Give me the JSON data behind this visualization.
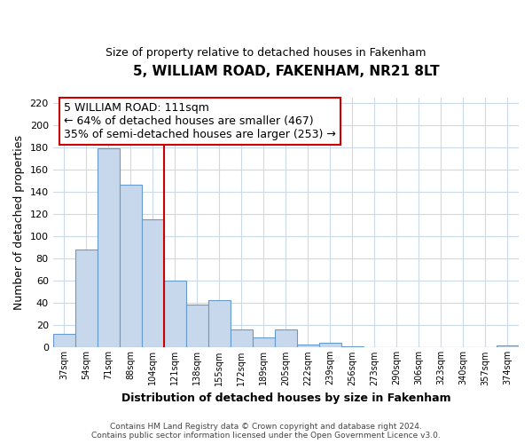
{
  "title": "5, WILLIAM ROAD, FAKENHAM, NR21 8LT",
  "subtitle": "Size of property relative to detached houses in Fakenham",
  "xlabel": "Distribution of detached houses by size in Fakenham",
  "ylabel": "Number of detached properties",
  "categories": [
    "37sqm",
    "54sqm",
    "71sqm",
    "88sqm",
    "104sqm",
    "121sqm",
    "138sqm",
    "155sqm",
    "172sqm",
    "189sqm",
    "205sqm",
    "222sqm",
    "239sqm",
    "256sqm",
    "273sqm",
    "290sqm",
    "306sqm",
    "323sqm",
    "340sqm",
    "357sqm",
    "374sqm"
  ],
  "values": [
    12,
    88,
    179,
    146,
    115,
    60,
    39,
    43,
    16,
    9,
    16,
    3,
    4,
    1,
    0,
    0,
    0,
    0,
    0,
    0,
    2
  ],
  "bar_color_fill": "#c8d8ec",
  "bar_color_edge": "#6699cc",
  "vline_x": 4.5,
  "vline_color": "#cc0000",
  "annotation_title": "5 WILLIAM ROAD: 111sqm",
  "annotation_line1": "← 64% of detached houses are smaller (467)",
  "annotation_line2": "35% of semi-detached houses are larger (253) →",
  "annotation_box_color": "#cc0000",
  "ylim": [
    0,
    225
  ],
  "yticks": [
    0,
    20,
    40,
    60,
    80,
    100,
    120,
    140,
    160,
    180,
    200,
    220
  ],
  "footer1": "Contains HM Land Registry data © Crown copyright and database right 2024.",
  "footer2": "Contains public sector information licensed under the Open Government Licence v3.0.",
  "bg_color": "#ffffff",
  "grid_color": "#ccd9e8",
  "title_fontsize": 11,
  "subtitle_fontsize": 9,
  "xlabel_fontsize": 9,
  "ylabel_fontsize": 9,
  "tick_fontsize": 8,
  "ann_fontsize": 9,
  "footer_fontsize": 6.5
}
